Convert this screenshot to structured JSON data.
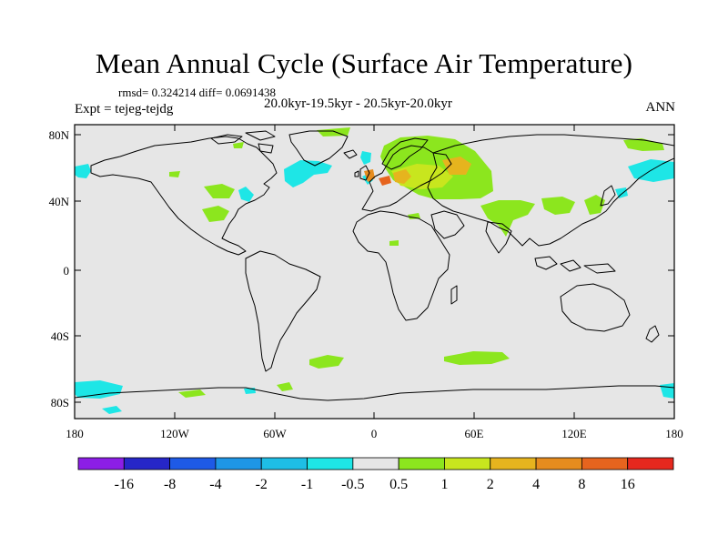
{
  "title": "Mean Annual Cycle (Surface Air Temperature)",
  "stats": "rmsd= 0.324214 diff= 0.0691438",
  "experiment": "Expt = tejeg-tejdg",
  "period": "20.0kyr-19.5kyr - 20.5kyr-20.0kyr",
  "season": "ANN",
  "map": {
    "lat_ticks": [
      "80N",
      "40N",
      "0",
      "40S",
      "80S"
    ],
    "lon_ticks": [
      "180",
      "120W",
      "60W",
      "0",
      "60E",
      "120E",
      "180"
    ],
    "background_color": "#e6e6e6",
    "coastline_color": "#000000"
  },
  "colorbar": {
    "labels": [
      "-16",
      "-8",
      "-4",
      "-2",
      "-1",
      "-0.5",
      "0.5",
      "1",
      "2",
      "4",
      "8",
      "16"
    ],
    "colors": [
      "#8c1ee6",
      "#2626c8",
      "#1e5ae6",
      "#1e96e6",
      "#1ebee6",
      "#1ee6e6",
      "#e6e6e6",
      "#8ce61e",
      "#c8e61e",
      "#e6b41e",
      "#e68c1e",
      "#e6641e",
      "#e6281e"
    ]
  }
}
